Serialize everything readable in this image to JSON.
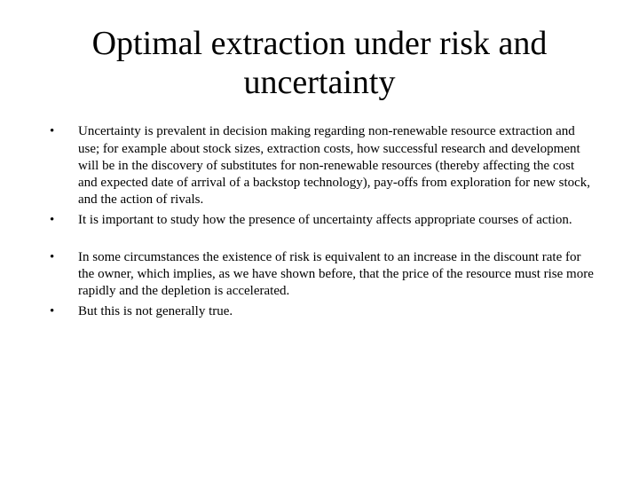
{
  "title": "Optimal extraction under risk and uncertainty",
  "bullets": {
    "b1": "Uncertainty is prevalent in decision making regarding non-renewable resource extraction and use; for example about stock sizes, extraction costs, how successful research and development will be in the discovery of substitutes for non-renewable resources (thereby affecting the cost and expected date of arrival of a backstop technology), pay-offs from exploration for new stock, and the action of rivals.",
    "b2": "It is important to study how the presence of uncertainty affects appropriate courses of action.",
    "b3": "In some circumstances the existence of risk is equivalent to an increase in the discount rate for the owner, which implies, as we have shown before, that the price of the resource must rise more rapidly and the depletion is accelerated.",
    "b4": "But this is not generally true."
  }
}
